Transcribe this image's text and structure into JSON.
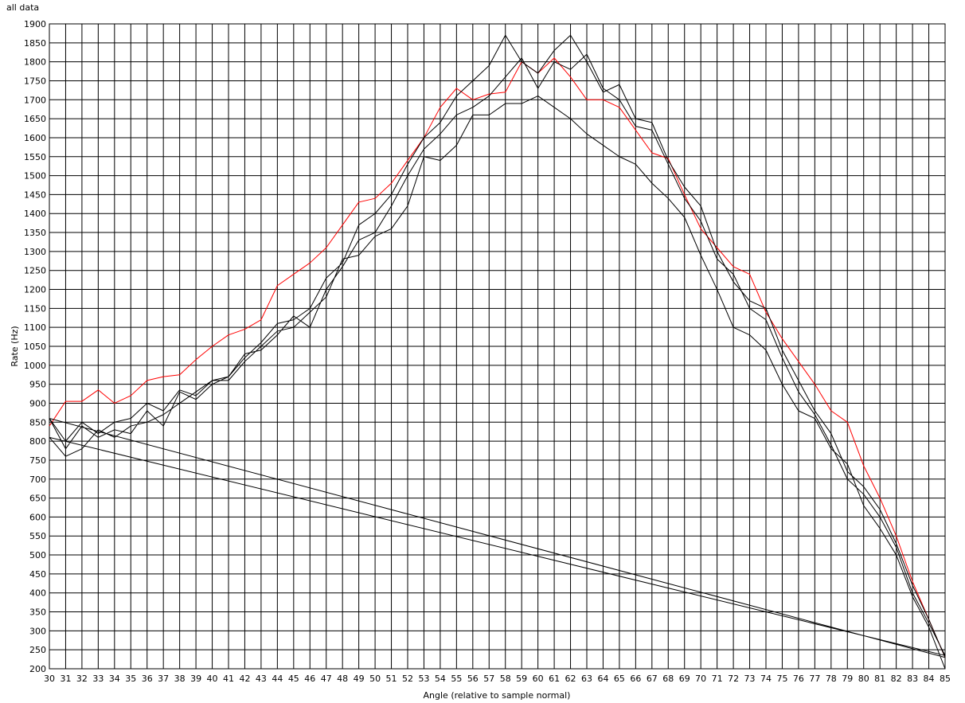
{
  "chart_data": {
    "type": "line",
    "title": "all data",
    "xlabel": "Angle (relative to sample normal)",
    "ylabel": "Rate (Hz)",
    "xlim": [
      30,
      85
    ],
    "ylim": [
      200,
      1900
    ],
    "grid": true,
    "xticks": [
      30,
      31,
      32,
      33,
      34,
      35,
      36,
      37,
      38,
      39,
      40,
      41,
      42,
      43,
      44,
      45,
      46,
      47,
      48,
      49,
      50,
      51,
      52,
      53,
      54,
      55,
      56,
      57,
      58,
      59,
      60,
      61,
      62,
      63,
      64,
      65,
      66,
      67,
      68,
      69,
      70,
      71,
      72,
      73,
      74,
      75,
      76,
      77,
      78,
      79,
      80,
      81,
      82,
      83,
      84,
      85
    ],
    "yticks": [
      200,
      250,
      300,
      350,
      400,
      450,
      500,
      550,
      600,
      650,
      700,
      750,
      800,
      850,
      900,
      950,
      1000,
      1050,
      1100,
      1150,
      1200,
      1250,
      1300,
      1350,
      1400,
      1450,
      1500,
      1550,
      1600,
      1650,
      1700,
      1750,
      1800,
      1850,
      1900
    ],
    "series": [
      {
        "color": "#ff0000",
        "x": [
          30,
          31,
          32,
          33,
          34,
          35,
          36,
          37,
          38,
          39,
          40,
          41,
          42,
          43,
          44,
          45,
          46,
          47,
          48,
          49,
          50,
          51,
          52,
          53,
          54,
          55,
          56,
          57,
          58,
          59,
          60,
          61,
          62,
          63,
          64,
          65,
          66,
          67,
          68,
          69,
          70,
          71,
          72,
          73,
          74,
          75,
          76,
          77,
          78,
          79,
          80,
          81,
          82,
          83,
          84,
          85
        ],
        "values": [
          840,
          905,
          905,
          935,
          900,
          920,
          960,
          970,
          975,
          1015,
          1050,
          1080,
          1095,
          1120,
          1210,
          1240,
          1270,
          1310,
          1370,
          1430,
          1440,
          1480,
          1540,
          1600,
          1680,
          1730,
          1700,
          1715,
          1720,
          1800,
          1770,
          1810,
          1760,
          1700,
          1700,
          1680,
          1620,
          1560,
          1545,
          1450,
          1360,
          1310,
          1260,
          1240,
          1140,
          1070,
          1010,
          950,
          880,
          850,
          735,
          650,
          550,
          430,
          330,
          230
        ]
      },
      {
        "color": "#000000",
        "x": [
          30,
          31,
          32,
          33,
          34,
          35,
          36,
          37,
          38,
          39,
          40,
          41,
          42,
          43,
          44,
          45,
          46,
          47,
          48,
          49,
          50,
          51,
          52,
          53,
          54,
          55,
          56,
          57,
          58,
          59,
          60,
          61,
          62,
          63,
          64,
          65,
          66,
          67,
          68,
          69,
          70,
          71,
          72,
          73,
          74,
          75,
          76,
          77,
          78,
          79,
          80,
          81,
          82,
          83,
          84,
          85,
          30,
          31,
          32,
          33,
          34,
          35,
          36,
          37,
          38,
          39,
          40,
          41,
          42,
          43,
          44,
          45,
          46,
          47,
          48,
          49,
          50,
          51,
          52,
          53,
          54,
          55,
          56,
          57,
          58,
          59,
          60,
          61,
          62,
          63,
          64,
          65,
          66,
          67,
          68,
          69,
          70,
          71,
          72,
          73,
          74,
          75,
          76,
          77,
          78,
          79,
          80,
          81,
          82,
          83,
          84,
          85,
          30,
          31,
          32,
          33,
          34,
          35,
          36,
          37,
          38,
          39,
          40,
          41,
          42,
          43,
          44,
          45,
          46,
          47,
          48,
          49,
          50,
          51,
          52,
          53,
          54,
          55,
          56,
          57,
          58,
          59,
          60,
          61,
          62,
          63,
          64,
          65,
          66,
          67,
          68,
          69,
          70,
          71,
          72,
          73,
          74,
          75,
          76,
          77,
          78,
          79,
          80,
          81,
          82,
          83,
          84,
          85
        ],
        "values": [
          860,
          800,
          850,
          820,
          850,
          860,
          900,
          880,
          935,
          920,
          960,
          970,
          1020,
          1060,
          1110,
          1120,
          1150,
          1230,
          1270,
          1370,
          1400,
          1450,
          1530,
          1600,
          1640,
          1710,
          1750,
          1790,
          1870,
          1800,
          1770,
          1830,
          1870,
          1800,
          1720,
          1740,
          1650,
          1640,
          1540,
          1470,
          1420,
          1300,
          1220,
          1170,
          1150,
          1040,
          960,
          880,
          820,
          720,
          680,
          620,
          530,
          420,
          330,
          230,
          860,
          780,
          840,
          810,
          830,
          820,
          880,
          840,
          930,
          910,
          950,
          970,
          1030,
          1040,
          1080,
          1130,
          1100,
          1200,
          1260,
          1330,
          1350,
          1420,
          1500,
          1570,
          1610,
          1660,
          1680,
          1710,
          1760,
          1810,
          1730,
          1800,
          1780,
          1820,
          1730,
          1700,
          1630,
          1620,
          1530,
          1440,
          1380,
          1280,
          1240,
          1150,
          1120,
          1020,
          930,
          870,
          790,
          700,
          660,
          600,
          520,
          400,
          320,
          235,
          810,
          760,
          780,
          830,
          810,
          840,
          850,
          870,
          900,
          930,
          960,
          960,
          1010,
          1050,
          1090,
          1100,
          1140,
          1180,
          1280,
          1290,
          1340,
          1360,
          1420,
          1550,
          1540,
          1580,
          1660,
          1660,
          1690,
          1690,
          1710,
          1680,
          1650,
          1610,
          1580,
          1550,
          1530,
          1480,
          1440,
          1390,
          1290,
          1200,
          1100,
          1080,
          1040,
          950,
          880,
          860,
          780,
          740,
          630,
          570,
          500,
          390,
          310,
          200
        ]
      }
    ]
  }
}
